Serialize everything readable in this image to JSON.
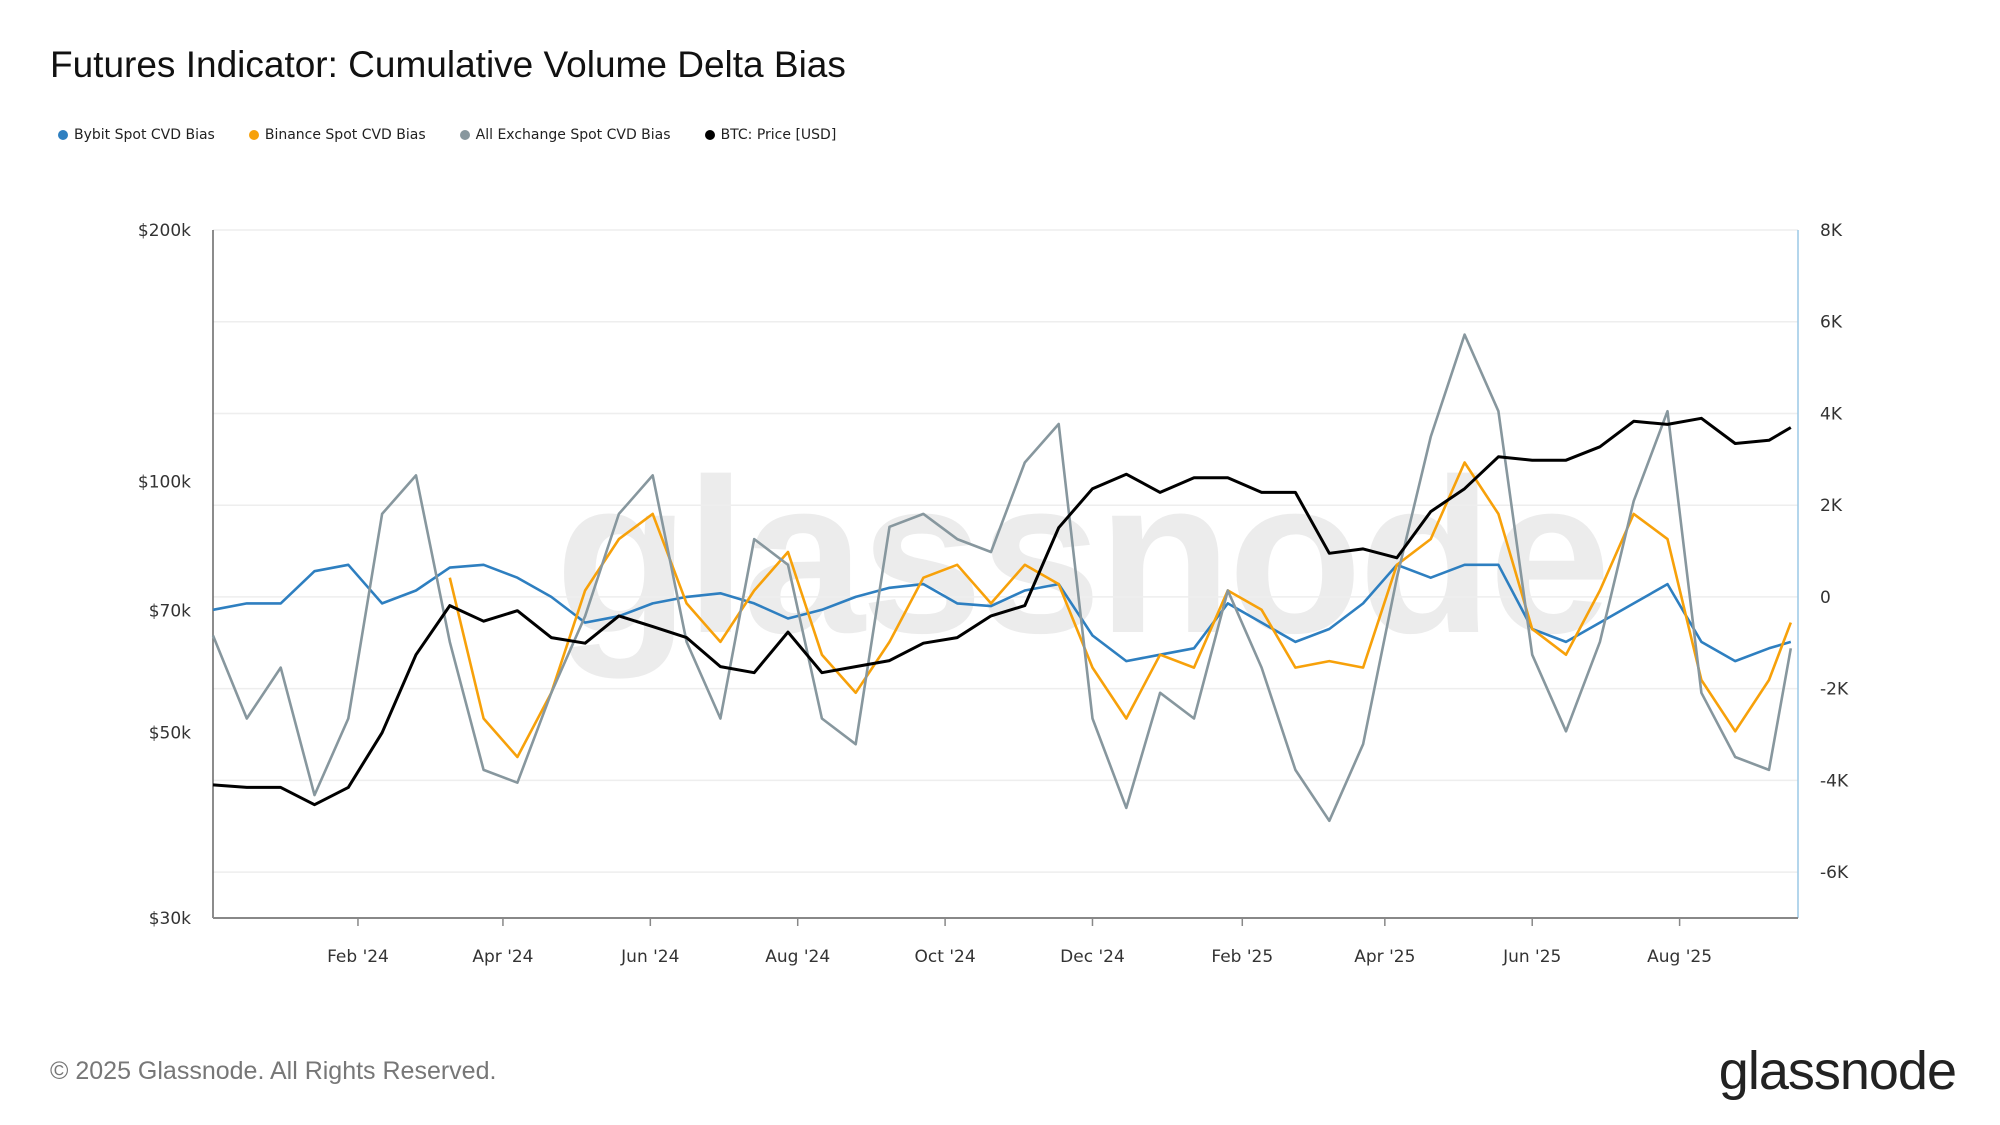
{
  "title": "Futures Indicator: Cumulative Volume Delta Bias",
  "footer": "© 2025 Glassnode. All Rights Reserved.",
  "logo_text": "glassnode",
  "watermark_text": "glassnode",
  "chart_data": {
    "type": "line",
    "title": "Futures Indicator: Cumulative Volume Delta Bias",
    "x_type": "date",
    "x": [
      "2023-12-03",
      "2023-12-17",
      "2023-12-31",
      "2024-01-14",
      "2024-01-28",
      "2024-02-11",
      "2024-02-25",
      "2024-03-10",
      "2024-03-24",
      "2024-04-07",
      "2024-04-21",
      "2024-05-05",
      "2024-05-19",
      "2024-06-02",
      "2024-06-16",
      "2024-06-30",
      "2024-07-14",
      "2024-07-28",
      "2024-08-11",
      "2024-08-25",
      "2024-09-08",
      "2024-09-22",
      "2024-10-06",
      "2024-10-20",
      "2024-11-03",
      "2024-11-17",
      "2024-12-01",
      "2024-12-15",
      "2024-12-29",
      "2025-01-12",
      "2025-01-26",
      "2025-02-09",
      "2025-02-23",
      "2025-03-09",
      "2025-03-23",
      "2025-04-06",
      "2025-04-20",
      "2025-05-04",
      "2025-05-18",
      "2025-06-01",
      "2025-06-15",
      "2025-06-29",
      "2025-07-13",
      "2025-07-27",
      "2025-08-10",
      "2025-08-24",
      "2025-09-07",
      "2025-09-16"
    ],
    "x_ticks": [
      {
        "date": "2024-02-01",
        "label": "Feb '24"
      },
      {
        "date": "2024-04-01",
        "label": "Apr '24"
      },
      {
        "date": "2024-06-01",
        "label": "Jun '24"
      },
      {
        "date": "2024-08-01",
        "label": "Aug '24"
      },
      {
        "date": "2024-10-01",
        "label": "Oct '24"
      },
      {
        "date": "2024-12-01",
        "label": "Dec '24"
      },
      {
        "date": "2025-02-01",
        "label": "Feb '25"
      },
      {
        "date": "2025-04-01",
        "label": "Apr '25"
      },
      {
        "date": "2025-06-01",
        "label": "Jun '25"
      },
      {
        "date": "2025-08-01",
        "label": "Aug '25"
      }
    ],
    "xlim": [
      "2023-12-03",
      "2025-09-19"
    ],
    "y_left": {
      "scale": "log",
      "range": [
        30000,
        200000
      ],
      "ticks": [
        {
          "v": 30000,
          "label": "$30k"
        },
        {
          "v": 50000,
          "label": "$50k"
        },
        {
          "v": 70000,
          "label": "$70k"
        },
        {
          "v": 100000,
          "label": "$100k"
        },
        {
          "v": 200000,
          "label": "$200k"
        }
      ]
    },
    "y_right": {
      "scale": "linear",
      "range": [
        -7000,
        8000
      ],
      "ticks": [
        {
          "v": -6000,
          "label": "-6K"
        },
        {
          "v": -4000,
          "label": "-4K"
        },
        {
          "v": -2000,
          "label": "-2K"
        },
        {
          "v": 0,
          "label": "0"
        },
        {
          "v": 2000,
          "label": "2K"
        },
        {
          "v": 4000,
          "label": "4K"
        },
        {
          "v": 6000,
          "label": "6K"
        },
        {
          "v": 8000,
          "label": "8K"
        }
      ]
    },
    "grid": true,
    "legend_position": "top-left",
    "series": [
      {
        "name": "Bybit Spot CVD Bias",
        "axis": "right",
        "color": "#2e7fc0",
        "values": [
          -280,
          -140,
          -140,
          560,
          700,
          -140,
          140,
          640,
          700,
          420,
          0,
          -560,
          -420,
          -140,
          0,
          80,
          -140,
          -470,
          -280,
          0,
          200,
          280,
          -140,
          -200,
          140,
          280,
          -840,
          -1400,
          -1260,
          -1120,
          -140,
          -560,
          -980,
          -700,
          -140,
          700,
          420,
          700,
          700,
          -700,
          -980,
          -560,
          -140,
          280,
          -980,
          -1400,
          -1120,
          -980
        ]
      },
      {
        "name": "Binance Spot CVD Bias",
        "axis": "right",
        "color": "#f7a10a",
        "values": [
          null,
          null,
          null,
          null,
          null,
          null,
          null,
          420,
          -2650,
          -3490,
          -2090,
          140,
          1260,
          1810,
          -140,
          -980,
          140,
          980,
          -1260,
          -2090,
          -980,
          420,
          700,
          -140,
          700,
          280,
          -1540,
          -2650,
          -1260,
          -1540,
          140,
          -280,
          -1540,
          -1400,
          -1540,
          700,
          1260,
          2930,
          1810,
          -700,
          -1260,
          140,
          1810,
          1260,
          -1810,
          -2930,
          -1810,
          -560
        ]
      },
      {
        "name": "All Exchange Spot CVD Bias",
        "axis": "right",
        "color": "#87979e",
        "values": [
          -840,
          -2650,
          -1540,
          -4320,
          -2650,
          1810,
          2650,
          -980,
          -3770,
          -4050,
          -2090,
          -420,
          1810,
          2650,
          -980,
          -2650,
          1260,
          700,
          -2650,
          -3210,
          1530,
          1810,
          1260,
          980,
          2930,
          3770,
          -2650,
          -4600,
          -2090,
          -2650,
          140,
          -1540,
          -3770,
          -4880,
          -3210,
          420,
          3490,
          5720,
          4050,
          -1260,
          -2930,
          -980,
          2090,
          4050,
          -2090,
          -3490,
          -3770,
          -1120
        ]
      },
      {
        "name": "BTC: Price [USD]",
        "axis": "left",
        "color": "#000000",
        "values": [
          43300,
          43000,
          43000,
          41000,
          43000,
          50000,
          62000,
          71000,
          68000,
          70000,
          65000,
          64000,
          69000,
          67000,
          65000,
          60000,
          59000,
          66000,
          59000,
          60000,
          61000,
          64000,
          65000,
          69000,
          71000,
          88000,
          98000,
          102000,
          97000,
          101000,
          101000,
          97000,
          97000,
          82000,
          83000,
          81000,
          92000,
          98000,
          107000,
          106000,
          106000,
          110000,
          118000,
          117000,
          119000,
          111000,
          112000,
          116000
        ]
      }
    ]
  }
}
